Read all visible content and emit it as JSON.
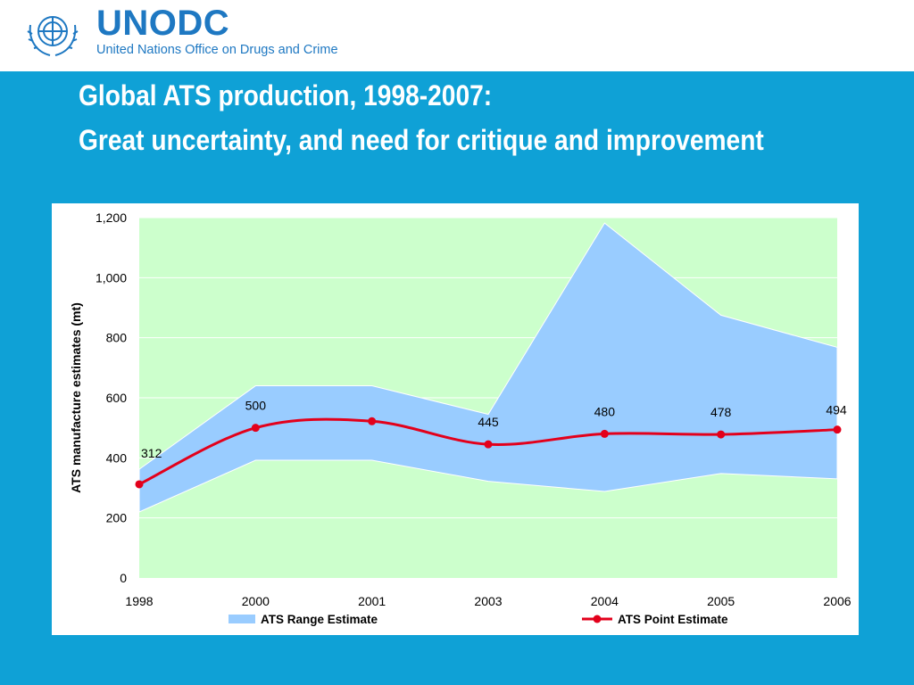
{
  "org": {
    "name": "UNODC",
    "full_name": "United Nations Office on Drugs and Crime",
    "emblem": "un-emblem-icon"
  },
  "slide": {
    "title_line1": "Global ATS production, 1998-2007:",
    "title_line2": "Great uncertainty, and need for critique and improvement"
  },
  "colors": {
    "background": "#0fa1d6",
    "plot_bg": "#ccffcc",
    "range_fill": "#99ccff",
    "point_line": "#e3001b",
    "brand": "#1e78c2"
  },
  "chart_data": {
    "type": "area",
    "x": [
      "1998",
      "2000",
      "2001",
      "2003",
      "2004",
      "2005",
      "2006"
    ],
    "ylabel": "ATS manufacture estimates (mt)",
    "ylim": [
      0,
      1200
    ],
    "yticks": [
      "0",
      "200",
      "400",
      "600",
      "800",
      "1,000",
      "1,200"
    ],
    "grid": true,
    "legend_position": "bottom",
    "series": [
      {
        "name": "ATS Range Estimate",
        "type": "range",
        "low": [
          220,
          392,
          392,
          322,
          288,
          348,
          330
        ],
        "high": [
          362,
          640,
          640,
          545,
          1182,
          875,
          768
        ]
      },
      {
        "name": "ATS Point Estimate",
        "type": "line",
        "values": [
          312,
          500,
          522,
          445,
          480,
          478,
          494
        ],
        "labels": [
          "312",
          "500",
          "",
          "445",
          "480",
          "478",
          "494"
        ]
      }
    ]
  }
}
